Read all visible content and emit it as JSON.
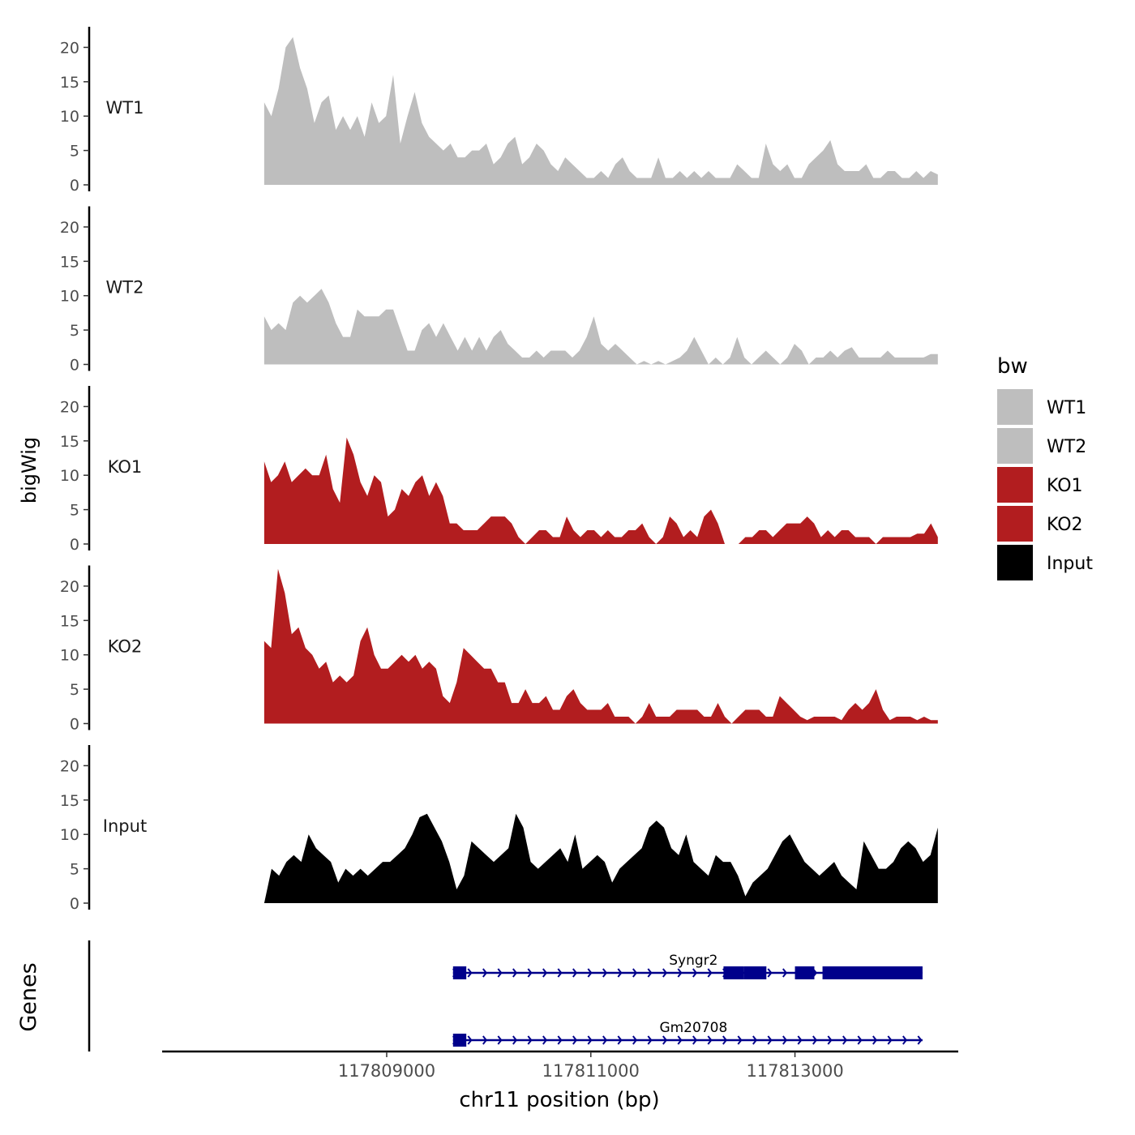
{
  "chart_data": {
    "type": "area",
    "title": "",
    "ylabel": "bigWig",
    "xlabel": "chr11 position (bp)",
    "genes_label": "Genes",
    "ylim": [
      0,
      23
    ],
    "xlim": [
      117806800,
      117814600
    ],
    "y_ticks": [
      0,
      5,
      10,
      15,
      20
    ],
    "x_ticks": [
      117809000,
      117811000,
      117813000
    ],
    "x_tick_labels": [
      "117809000",
      "117811000",
      "117813000"
    ],
    "region": {
      "start": 117807800,
      "end": 117814400
    },
    "legend": {
      "title": "bw",
      "entries": [
        {
          "label": "WT1",
          "color": "#bebebe"
        },
        {
          "label": "WT2",
          "color": "#bebebe"
        },
        {
          "label": "KO1",
          "color": "#b21d1f"
        },
        {
          "label": "KO2",
          "color": "#b21d1f"
        },
        {
          "label": "Input",
          "color": "#000000"
        }
      ]
    },
    "series": [
      {
        "name": "WT1",
        "color": "#bebebe",
        "values": [
          12,
          10,
          14,
          20,
          21.5,
          17,
          14,
          9,
          12,
          13,
          8,
          10,
          8,
          10,
          7,
          12,
          9,
          10,
          16,
          6,
          10,
          13.5,
          9,
          7,
          6,
          5,
          6,
          4,
          4,
          5,
          5,
          6,
          3,
          4,
          6,
          7,
          3,
          4,
          6,
          5,
          3,
          2,
          4,
          3,
          2,
          1,
          1,
          2,
          1,
          3,
          4,
          2,
          1,
          1,
          1,
          4,
          1,
          1,
          2,
          1,
          2,
          1,
          2,
          1,
          1,
          1,
          3,
          2,
          1,
          1,
          6,
          3,
          2,
          3,
          1,
          1,
          3,
          4,
          5,
          6.5,
          3,
          2,
          2,
          2,
          3,
          1,
          1,
          2,
          2,
          1,
          1,
          2,
          1,
          2,
          1.5
        ]
      },
      {
        "name": "WT2",
        "color": "#bebebe",
        "values": [
          7,
          5,
          6,
          5,
          9,
          10,
          9,
          10,
          11,
          9,
          6,
          4,
          4,
          8,
          7,
          7,
          7,
          8,
          8,
          5,
          2,
          2,
          5,
          6,
          4,
          6,
          4,
          2,
          4,
          2,
          4,
          2,
          4,
          5,
          3,
          2,
          1,
          1,
          2,
          1,
          2,
          2,
          2,
          1,
          2,
          4,
          7,
          3,
          2,
          3,
          2,
          1,
          0,
          0.5,
          0,
          0.5,
          0,
          0.5,
          1,
          2,
          4,
          2,
          0,
          1,
          0,
          1,
          4,
          1,
          0,
          1,
          2,
          1,
          0,
          1,
          3,
          2,
          0,
          1,
          1,
          2,
          1,
          2,
          2.5,
          1,
          1,
          1,
          1,
          2,
          1,
          1,
          1,
          1,
          1,
          1.5,
          1.5
        ]
      },
      {
        "name": "KO1",
        "color": "#b21d1f",
        "values": [
          12,
          9,
          10,
          12,
          9,
          10,
          11,
          10,
          10,
          13,
          8,
          6,
          15.5,
          13,
          9,
          7,
          10,
          9,
          4,
          5,
          8,
          7,
          9,
          10,
          7,
          9,
          7,
          3,
          3,
          2,
          2,
          2,
          3,
          4,
          4,
          4,
          3,
          1,
          0,
          1,
          2,
          2,
          1,
          1,
          4,
          2,
          1,
          2,
          2,
          1,
          2,
          1,
          1,
          2,
          2,
          3,
          1,
          0,
          1,
          4,
          3,
          1,
          2,
          1,
          4,
          5,
          3,
          0,
          0,
          0,
          1,
          1,
          2,
          2,
          1,
          2,
          3,
          3,
          3,
          4,
          3,
          1,
          2,
          1,
          2,
          2,
          1,
          1,
          1,
          0,
          1,
          1,
          1,
          1,
          1,
          1.5,
          1.5,
          3,
          1
        ]
      },
      {
        "name": "KO2",
        "color": "#b21d1f",
        "values": [
          12,
          11,
          22.5,
          19,
          13,
          14,
          11,
          10,
          8,
          9,
          6,
          7,
          6,
          7,
          12,
          14,
          10,
          8,
          8,
          9,
          10,
          9,
          10,
          8,
          9,
          8,
          4,
          3,
          6,
          11,
          10,
          9,
          8,
          8,
          6,
          6,
          3,
          3,
          5,
          3,
          3,
          4,
          2,
          2,
          4,
          5,
          3,
          2,
          2,
          2,
          3,
          1,
          1,
          1,
          0,
          1,
          3,
          1,
          1,
          1,
          2,
          2,
          2,
          2,
          1,
          1,
          3,
          1,
          0,
          1,
          2,
          2,
          2,
          1,
          1,
          4,
          3,
          2,
          1,
          0.5,
          1,
          1,
          1,
          1,
          0.5,
          2,
          3,
          2,
          3,
          5,
          2,
          0.5,
          1,
          1,
          1,
          0.5,
          1,
          0.5,
          0.5
        ]
      },
      {
        "name": "Input",
        "color": "#000000",
        "values": [
          0,
          5,
          4,
          6,
          7,
          6,
          10,
          8,
          7,
          6,
          3,
          5,
          4,
          5,
          4,
          5,
          6,
          6,
          7,
          8,
          10,
          12.5,
          13,
          11,
          9,
          6,
          2,
          4,
          9,
          8,
          7,
          6,
          7,
          8,
          13,
          11,
          6,
          5,
          6,
          7,
          8,
          6,
          10,
          5,
          6,
          7,
          6,
          3,
          5,
          6,
          7,
          8,
          11,
          12,
          11,
          8,
          7,
          10,
          6,
          5,
          4,
          7,
          6,
          6,
          4,
          1,
          3,
          4,
          5,
          7,
          9,
          10,
          8,
          6,
          5,
          4,
          5,
          6,
          4,
          3,
          2,
          9,
          7,
          5,
          5,
          6,
          8,
          9,
          8,
          6,
          7,
          11
        ]
      }
    ],
    "genes": [
      {
        "name": "Syngr2",
        "start": 117809650,
        "end": 117814250,
        "exons": [
          [
            117809650,
            117809780
          ],
          [
            117812300,
            117812500
          ],
          [
            117812500,
            117812720
          ],
          [
            117813000,
            117813190
          ],
          [
            117813270,
            117814250
          ]
        ]
      },
      {
        "name": "Gm20708",
        "start": 117809650,
        "end": 117814250,
        "exons": [
          [
            117809650,
            117809780
          ]
        ]
      }
    ]
  }
}
